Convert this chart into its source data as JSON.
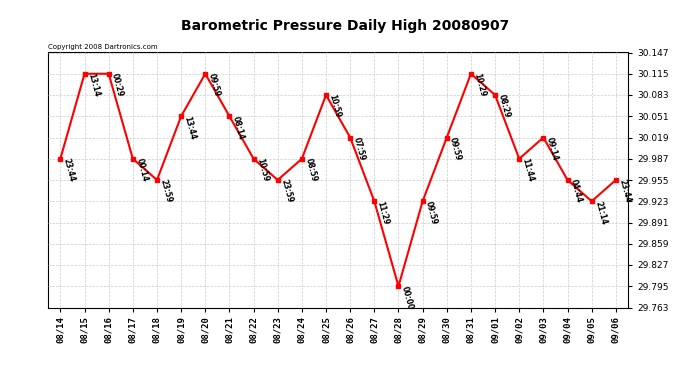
{
  "title": "Barometric Pressure Daily High 20080907",
  "copyright": "Copyright 2008 Dartronics.com",
  "background_color": "#ffffff",
  "line_color": "#ff0000",
  "marker_color": "#ff0000",
  "grid_color": "#cccccc",
  "ylim": [
    29.763,
    30.147
  ],
  "yticks": [
    29.763,
    29.795,
    29.827,
    29.859,
    29.891,
    29.923,
    29.955,
    29.987,
    30.019,
    30.051,
    30.083,
    30.115,
    30.147
  ],
  "points": [
    {
      "date": "08/14",
      "value": 29.987,
      "label": "23:44"
    },
    {
      "date": "08/15",
      "value": 30.115,
      "label": "13:14"
    },
    {
      "date": "08/16",
      "value": 30.115,
      "label": "00:29"
    },
    {
      "date": "08/17",
      "value": 29.987,
      "label": "00:14"
    },
    {
      "date": "08/18",
      "value": 29.955,
      "label": "23:59"
    },
    {
      "date": "08/19",
      "value": 30.051,
      "label": "13:44"
    },
    {
      "date": "08/20",
      "value": 30.115,
      "label": "09:59"
    },
    {
      "date": "08/21",
      "value": 30.051,
      "label": "08:14"
    },
    {
      "date": "08/22",
      "value": 29.987,
      "label": "10:59"
    },
    {
      "date": "08/23",
      "value": 29.955,
      "label": "23:59"
    },
    {
      "date": "08/24",
      "value": 29.987,
      "label": "08:59"
    },
    {
      "date": "08/25",
      "value": 30.083,
      "label": "10:59"
    },
    {
      "date": "08/26",
      "value": 30.019,
      "label": "07:59"
    },
    {
      "date": "08/27",
      "value": 29.923,
      "label": "11:29"
    },
    {
      "date": "08/28",
      "value": 29.795,
      "label": "00:00"
    },
    {
      "date": "08/29",
      "value": 29.923,
      "label": "09:59"
    },
    {
      "date": "08/30",
      "value": 30.019,
      "label": "09:59"
    },
    {
      "date": "08/31",
      "value": 30.115,
      "label": "10:29"
    },
    {
      "date": "09/01",
      "value": 30.083,
      "label": "08:29"
    },
    {
      "date": "09/02",
      "value": 29.987,
      "label": "11:44"
    },
    {
      "date": "09/03",
      "value": 30.019,
      "label": "09:14"
    },
    {
      "date": "09/04",
      "value": 29.955,
      "label": "04:44"
    },
    {
      "date": "09/05",
      "value": 29.923,
      "label": "21:14"
    },
    {
      "date": "09/06",
      "value": 29.955,
      "label": "23:44"
    }
  ]
}
